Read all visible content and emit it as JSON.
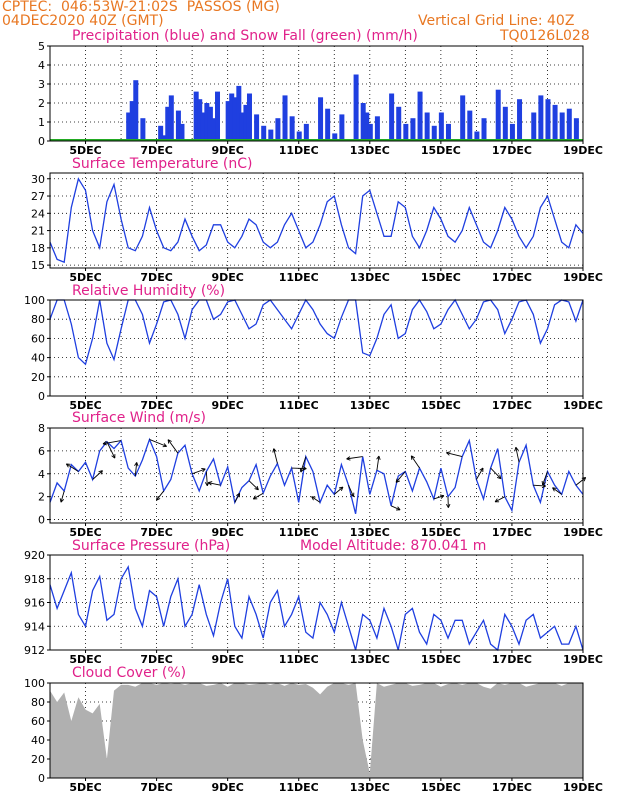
{
  "header": {
    "line1": "CPTEC:  046:53W-21:02S  PASSOS (MG)",
    "line2": "04DEC2020 40Z (GMT)",
    "grid_note": "Vertical Grid Line: 40Z",
    "code": "TQ0126L028"
  },
  "colors": {
    "header": "#e87722",
    "title": "#e0218a",
    "series_blue": "#1f3fe0",
    "snow_green": "#22aa22",
    "cloud_gray": "#b0b0b0",
    "axis": "#000000"
  },
  "x_axis": {
    "start": "04DEC2020 00Z",
    "end": "19DEC2020 00Z",
    "tick_labels": [
      "5DEC",
      "7DEC",
      "9DEC",
      "11DEC",
      "13DEC",
      "15DEC",
      "17DEC",
      "19DEC"
    ],
    "tick_days": [
      5,
      7,
      9,
      11,
      13,
      15,
      17,
      19
    ]
  },
  "chart_data": [
    {
      "type": "bar",
      "title": "Precipitation (blue) and Snow Fall (green) (mm/h)",
      "ylim": [
        0,
        5
      ],
      "yticks": [
        0,
        1,
        2,
        3,
        4,
        5
      ],
      "series": [
        {
          "name": "Precipitation",
          "color": "#1f3fe0",
          "x": [
            5.1,
            5.2,
            6.2,
            6.3,
            6.4,
            6.6,
            7.1,
            7.2,
            7.3,
            7.4,
            7.6,
            7.7,
            8.1,
            8.2,
            8.3,
            8.4,
            8.5,
            8.6,
            8.7,
            9.0,
            9.1,
            9.2,
            9.3,
            9.4,
            9.5,
            9.6,
            9.8,
            10.0,
            10.2,
            10.4,
            10.6,
            10.8,
            11.0,
            11.2,
            11.6,
            11.8,
            12.0,
            12.2,
            12.6,
            12.8,
            12.9,
            13.0,
            13.2,
            13.6,
            13.8,
            14.0,
            14.2,
            14.4,
            14.6,
            14.8,
            15.0,
            15.2,
            15.6,
            15.8,
            16.0,
            16.2,
            16.6,
            16.8,
            17.0,
            17.2,
            17.6,
            17.8,
            18.0,
            18.2,
            18.4,
            18.6,
            18.8
          ],
          "values": [
            0.1,
            0.1,
            1.5,
            2.1,
            3.2,
            1.2,
            0.8,
            0.3,
            1.8,
            2.4,
            1.6,
            0.9,
            2.6,
            2.2,
            1.5,
            2.0,
            1.8,
            1.2,
            2.6,
            2.1,
            2.5,
            2.3,
            2.9,
            1.5,
            1.9,
            2.5,
            1.4,
            0.8,
            0.6,
            1.2,
            2.4,
            1.3,
            0.5,
            0.9,
            2.3,
            1.7,
            0.4,
            1.4,
            3.5,
            2.0,
            1.5,
            0.9,
            1.3,
            2.5,
            1.8,
            0.9,
            1.2,
            2.6,
            1.5,
            0.8,
            1.5,
            0.9,
            2.4,
            1.6,
            0.5,
            1.2,
            2.7,
            1.8,
            0.9,
            2.2,
            1.5,
            2.4,
            2.2,
            1.9,
            1.5,
            1.7,
            1.2
          ]
        },
        {
          "name": "Snow Fall",
          "color": "#22aa22",
          "x": [
            4.0,
            19.0
          ],
          "values": [
            0,
            0
          ]
        }
      ]
    },
    {
      "type": "line",
      "title": "Surface Temperature (nC)",
      "ylim": [
        14.5,
        31
      ],
      "yticks": [
        15,
        18,
        21,
        24,
        27,
        30
      ],
      "series": [
        {
          "name": "Temperature",
          "color": "#1f3fe0",
          "x": [
            4.0,
            4.2,
            4.4,
            4.6,
            4.8,
            5.0,
            5.2,
            5.4,
            5.6,
            5.8,
            6.0,
            6.2,
            6.4,
            6.6,
            6.8,
            7.0,
            7.2,
            7.4,
            7.6,
            7.8,
            8.0,
            8.2,
            8.4,
            8.6,
            8.8,
            9.0,
            9.2,
            9.4,
            9.6,
            9.8,
            10.0,
            10.2,
            10.4,
            10.6,
            10.8,
            11.0,
            11.2,
            11.4,
            11.6,
            11.8,
            12.0,
            12.2,
            12.4,
            12.6,
            12.8,
            13.0,
            13.2,
            13.4,
            13.6,
            13.8,
            14.0,
            14.2,
            14.4,
            14.6,
            14.8,
            15.0,
            15.2,
            15.4,
            15.6,
            15.8,
            16.0,
            16.2,
            16.4,
            16.6,
            16.8,
            17.0,
            17.2,
            17.4,
            17.6,
            17.8,
            18.0,
            18.2,
            18.4,
            18.6,
            18.8,
            19.0
          ],
          "values": [
            19,
            16,
            15.5,
            25,
            30,
            28,
            21,
            18,
            26,
            29,
            23,
            18,
            17.5,
            20,
            25,
            21,
            18,
            17.5,
            19,
            23,
            20,
            17.5,
            18.5,
            22,
            22,
            19,
            18,
            20,
            23,
            22,
            19,
            18,
            19,
            22,
            24,
            21,
            18,
            19,
            22,
            26,
            27,
            22,
            18,
            17,
            27,
            28,
            24,
            20,
            20,
            26,
            25,
            20,
            18,
            21,
            25,
            23,
            20,
            19,
            21,
            25,
            22,
            19,
            18,
            21,
            25,
            23,
            20,
            18,
            20,
            25,
            27,
            23,
            19,
            18,
            22,
            20.5
          ]
        }
      ]
    },
    {
      "type": "line",
      "title": "Relative Humidity (%)",
      "ylim": [
        0,
        100
      ],
      "yticks": [
        0,
        20,
        40,
        60,
        80,
        100
      ],
      "series": [
        {
          "name": "Humidity",
          "color": "#1f3fe0",
          "x": [
            4.0,
            4.2,
            4.4,
            4.6,
            4.8,
            5.0,
            5.2,
            5.4,
            5.6,
            5.8,
            6.0,
            6.2,
            6.4,
            6.6,
            6.8,
            7.0,
            7.2,
            7.4,
            7.6,
            7.8,
            8.0,
            8.2,
            8.4,
            8.6,
            8.8,
            9.0,
            9.2,
            9.4,
            9.6,
            9.8,
            10.0,
            10.2,
            10.4,
            10.6,
            10.8,
            11.0,
            11.2,
            11.4,
            11.6,
            11.8,
            12.0,
            12.2,
            12.4,
            12.6,
            12.8,
            13.0,
            13.2,
            13.4,
            13.6,
            13.8,
            14.0,
            14.2,
            14.4,
            14.6,
            14.8,
            15.0,
            15.2,
            15.4,
            15.6,
            15.8,
            16.0,
            16.2,
            16.4,
            16.6,
            16.8,
            17.0,
            17.2,
            17.4,
            17.6,
            17.8,
            18.0,
            18.2,
            18.4,
            18.6,
            18.8,
            19.0
          ],
          "values": [
            80,
            100,
            100,
            75,
            40,
            33,
            60,
            100,
            55,
            38,
            70,
            100,
            100,
            85,
            55,
            75,
            98,
            100,
            85,
            60,
            90,
            100,
            100,
            80,
            85,
            98,
            100,
            85,
            70,
            75,
            95,
            100,
            90,
            80,
            70,
            85,
            100,
            90,
            75,
            65,
            60,
            82,
            100,
            100,
            45,
            42,
            60,
            85,
            95,
            60,
            65,
            90,
            100,
            88,
            70,
            75,
            90,
            100,
            85,
            70,
            80,
            98,
            100,
            90,
            65,
            80,
            98,
            100,
            85,
            55,
            70,
            95,
            100,
            98,
            78,
            100
          ]
        }
      ]
    },
    {
      "type": "line",
      "title": "Surface Wind (m/s)",
      "ylim": [
        -0.3,
        8
      ],
      "yticks": [
        0,
        2,
        4,
        6,
        8
      ],
      "series": [
        {
          "name": "Wind speed",
          "color": "#1f3fe0",
          "x": [
            4.0,
            4.2,
            4.4,
            4.6,
            4.8,
            5.0,
            5.2,
            5.4,
            5.6,
            5.8,
            6.0,
            6.2,
            6.4,
            6.6,
            6.8,
            7.0,
            7.2,
            7.4,
            7.6,
            7.8,
            8.0,
            8.2,
            8.4,
            8.6,
            8.8,
            9.0,
            9.2,
            9.4,
            9.6,
            9.8,
            10.0,
            10.2,
            10.4,
            10.6,
            10.8,
            11.0,
            11.2,
            11.4,
            11.6,
            11.8,
            12.0,
            12.2,
            12.4,
            12.6,
            12.8,
            13.0,
            13.2,
            13.4,
            13.6,
            13.8,
            14.0,
            14.2,
            14.4,
            14.6,
            14.8,
            15.0,
            15.2,
            15.4,
            15.6,
            15.8,
            16.0,
            16.2,
            16.4,
            16.6,
            16.8,
            17.0,
            17.2,
            17.4,
            17.6,
            17.8,
            18.0,
            18.2,
            18.4,
            18.6,
            18.8,
            19.0
          ],
          "values": [
            1.5,
            3.2,
            2.5,
            4.8,
            4.2,
            5.0,
            3.5,
            6.0,
            6.8,
            6.2,
            6.9,
            4.5,
            3.8,
            5.2,
            7.0,
            5.5,
            2.5,
            3.5,
            5.8,
            6.5,
            4.0,
            2.5,
            4.2,
            5.3,
            3.0,
            4.6,
            1.5,
            2.8,
            3.4,
            4.8,
            2.3,
            3.8,
            4.9,
            3.0,
            4.5,
            1.5,
            5.5,
            4.2,
            1.5,
            3.0,
            2.2,
            4.8,
            3.0,
            0.5,
            5.5,
            2.2,
            4.3,
            4.0,
            1.2,
            3.8,
            4.2,
            2.5,
            4.5,
            3.3,
            1.8,
            4.5,
            2.0,
            2.8,
            5.5,
            6.9,
            3.5,
            1.8,
            4.5,
            6.2,
            2.0,
            0.8,
            5.0,
            6.5,
            3.0,
            1.5,
            4.2,
            3.0,
            2.2,
            4.2,
            3.0,
            2.2
          ]
        }
      ],
      "vector_arrows": "black direction arrows along the curve"
    },
    {
      "type": "line",
      "title": "Surface Pressure (hPa)",
      "annotation": "Model Altitude: 870.041 m",
      "ylim": [
        912,
        920
      ],
      "yticks": [
        912,
        914,
        916,
        918,
        920
      ],
      "series": [
        {
          "name": "Pressure",
          "color": "#1f3fe0",
          "x": [
            4.0,
            4.2,
            4.4,
            4.6,
            4.8,
            5.0,
            5.2,
            5.4,
            5.6,
            5.8,
            6.0,
            6.2,
            6.4,
            6.6,
            6.8,
            7.0,
            7.2,
            7.4,
            7.6,
            7.8,
            8.0,
            8.2,
            8.4,
            8.6,
            8.8,
            9.0,
            9.2,
            9.4,
            9.6,
            9.8,
            10.0,
            10.2,
            10.4,
            10.6,
            10.8,
            11.0,
            11.2,
            11.4,
            11.6,
            11.8,
            12.0,
            12.2,
            12.4,
            12.6,
            12.8,
            13.0,
            13.2,
            13.4,
            13.6,
            13.8,
            14.0,
            14.2,
            14.4,
            14.6,
            14.8,
            15.0,
            15.2,
            15.4,
            15.6,
            15.8,
            16.0,
            16.2,
            16.4,
            16.6,
            16.8,
            17.0,
            17.2,
            17.4,
            17.6,
            17.8,
            18.0,
            18.2,
            18.4,
            18.6,
            18.8,
            19.0
          ],
          "values": [
            917.5,
            915.5,
            917.0,
            918.5,
            915.0,
            914.0,
            917.0,
            918.2,
            914.5,
            915.0,
            918.0,
            919.0,
            915.5,
            914.0,
            917.0,
            916.5,
            914.0,
            916.5,
            918.0,
            914.0,
            915.0,
            917.5,
            915.0,
            913.2,
            916.0,
            918.0,
            914.0,
            913.0,
            916.5,
            915.0,
            913.0,
            916.0,
            917.0,
            914.0,
            915.0,
            916.5,
            913.5,
            913.0,
            916.0,
            915.0,
            913.5,
            916.0,
            914.0,
            912.0,
            915.0,
            914.5,
            913.0,
            915.5,
            914.0,
            912.0,
            915.0,
            915.5,
            913.5,
            912.5,
            915.0,
            914.5,
            913.0,
            914.5,
            914.5,
            912.5,
            913.5,
            914.5,
            912.5,
            912.0,
            915.0,
            914.0,
            912.5,
            914.5,
            915.0,
            913.0,
            913.5,
            914.0,
            912.5,
            912.5,
            914.0,
            912.0
          ]
        }
      ]
    },
    {
      "type": "bar",
      "title": "Cloud Cover (%)",
      "ylim": [
        0,
        100
      ],
      "yticks": [
        0,
        20,
        40,
        60,
        80,
        100
      ],
      "series": [
        {
          "name": "Cloud cover",
          "color": "#b0b0b0",
          "x": [
            4.0,
            4.2,
            4.4,
            4.6,
            4.8,
            5.0,
            5.2,
            5.4,
            5.6,
            5.8,
            6.0,
            6.2,
            6.4,
            6.6,
            6.8,
            7.0,
            7.2,
            7.4,
            7.6,
            7.8,
            8.0,
            8.2,
            8.4,
            8.6,
            8.8,
            9.0,
            9.2,
            9.4,
            9.6,
            9.8,
            10.0,
            10.2,
            10.4,
            10.6,
            10.8,
            11.0,
            11.2,
            11.4,
            11.6,
            11.8,
            12.0,
            12.2,
            12.4,
            12.6,
            12.8,
            13.0,
            13.2,
            13.4,
            13.6,
            13.8,
            14.0,
            14.2,
            14.4,
            14.6,
            14.8,
            15.0,
            15.2,
            15.4,
            15.6,
            15.8,
            16.0,
            16.2,
            16.4,
            16.6,
            16.8,
            17.0,
            17.2,
            17.4,
            17.6,
            17.8,
            18.0,
            18.2,
            18.4,
            18.6,
            18.8,
            19.0
          ],
          "values": [
            92,
            80,
            90,
            60,
            85,
            72,
            68,
            78,
            20,
            92,
            98,
            98,
            96,
            100,
            100,
            98,
            100,
            99,
            100,
            98,
            100,
            100,
            97,
            98,
            100,
            96,
            100,
            100,
            98,
            99,
            100,
            98,
            100,
            97,
            100,
            98,
            99,
            95,
            88,
            96,
            100,
            100,
            98,
            100,
            40,
            5,
            100,
            96,
            98,
            100,
            100,
            97,
            98,
            100,
            100,
            96,
            99,
            100,
            98,
            100,
            100,
            96,
            94,
            100,
            98,
            100,
            100,
            96,
            98,
            100,
            100,
            100,
            97,
            100,
            100,
            100
          ]
        }
      ]
    }
  ]
}
